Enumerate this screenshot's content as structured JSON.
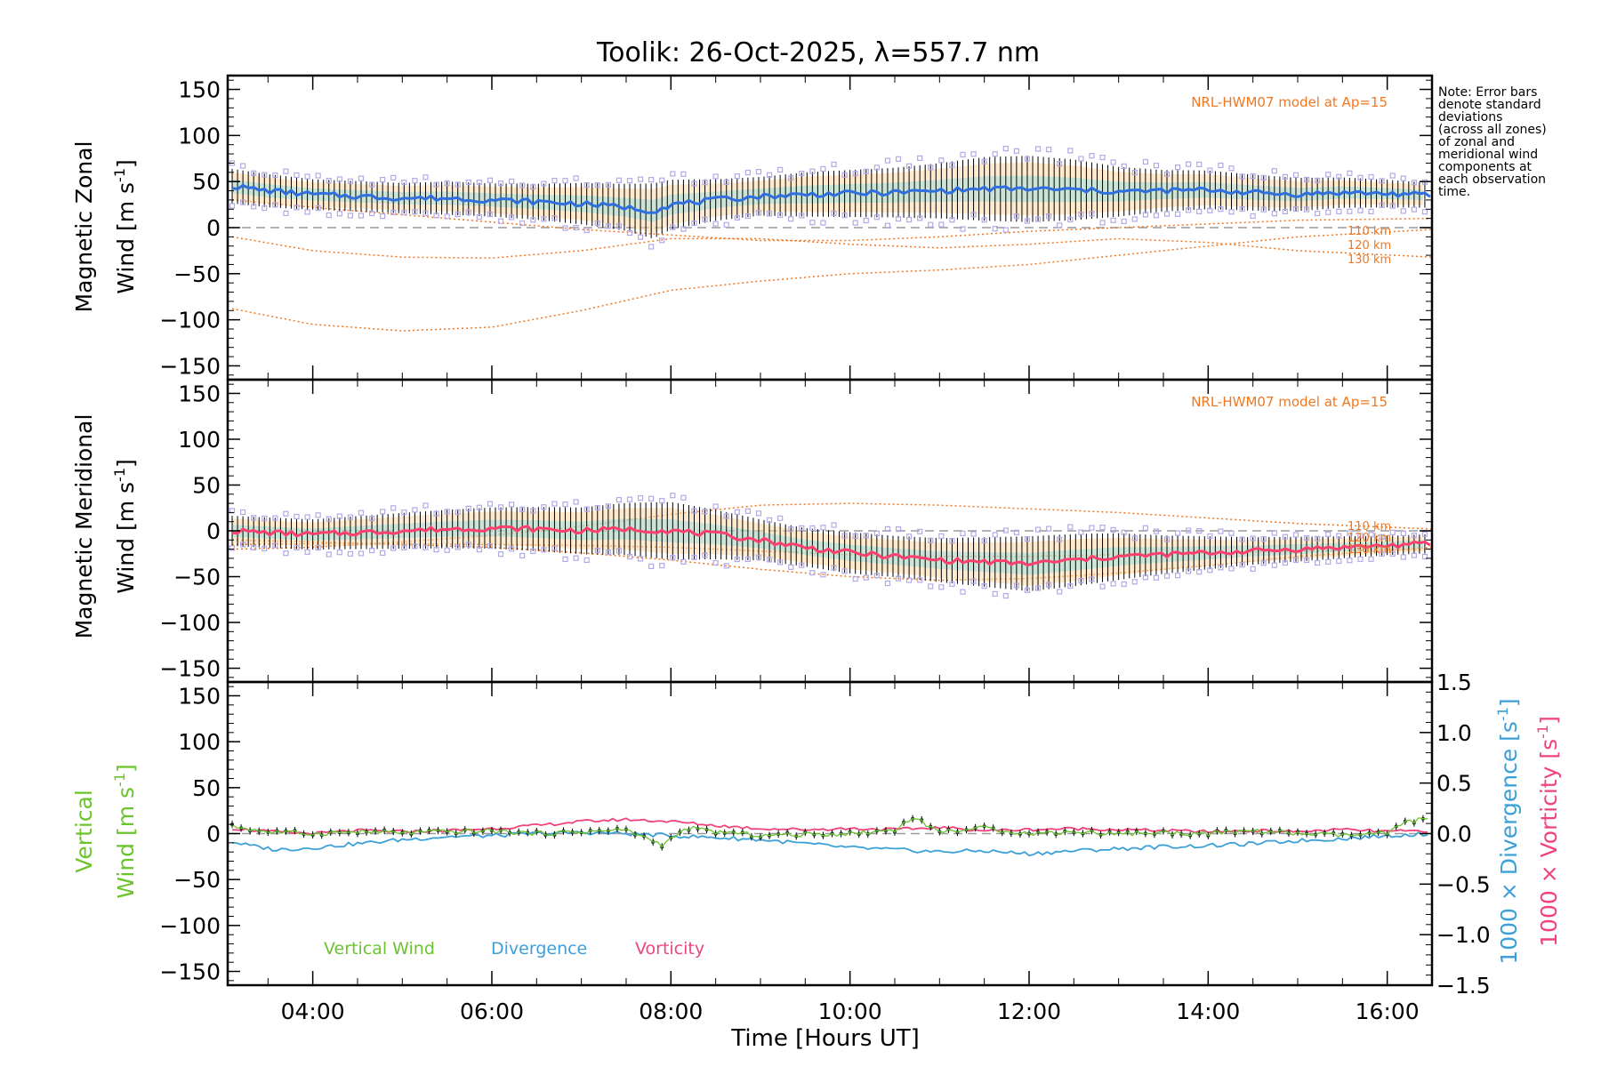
{
  "title": "Toolik: 26-Oct-2025, λ=557.7 nm",
  "note_lines": [
    "Note: Error bars",
    "denote standard",
    "deviations",
    "(across all zones)",
    "of zonal and",
    "meridional wind",
    "components at",
    "each observation",
    "time."
  ],
  "chart_data": [
    {
      "id": "zonal",
      "type": "line",
      "ylabel_top": "Magnetic Zonal",
      "ylabel_bottom_prefix": "Wind [m s",
      "ylabel_exp": "-1",
      "ylabel_bottom_suffix": "]",
      "xlim": [
        3.05,
        16.5
      ],
      "ylim": [
        -165,
        165
      ],
      "yticks": [
        -150,
        -100,
        -50,
        0,
        50,
        100,
        150
      ],
      "model_label": "NRL-HWM07 model at Ap=15",
      "model_altitude_labels": [
        "110 km",
        "120 km",
        "130 km"
      ],
      "mean_x": [
        3.1,
        3.5,
        4.0,
        4.5,
        5.0,
        5.5,
        6.0,
        6.5,
        7.0,
        7.5,
        7.8,
        8.0,
        8.5,
        9.0,
        9.5,
        10.0,
        10.5,
        11.0,
        11.5,
        12.0,
        12.5,
        13.0,
        13.5,
        14.0,
        14.5,
        15.0,
        15.5,
        16.0,
        16.5
      ],
      "mean_y": [
        45,
        40,
        36,
        34,
        32,
        32,
        30,
        28,
        26,
        22,
        18,
        25,
        30,
        34,
        36,
        37,
        38,
        40,
        42,
        42,
        41,
        39,
        40,
        41,
        38,
        36,
        38,
        37,
        35
      ],
      "spread": [
        25,
        24,
        22,
        22,
        22,
        24,
        24,
        26,
        30,
        34,
        40,
        36,
        30,
        28,
        32,
        34,
        36,
        40,
        46,
        48,
        44,
        36,
        30,
        28,
        26,
        24,
        22,
        20,
        18
      ],
      "model_x": [
        3.1,
        4.0,
        5.0,
        6.0,
        7.0,
        8.0,
        9.0,
        10.0,
        11.0,
        12.0,
        13.0,
        14.0,
        15.0,
        16.5
      ],
      "model_series": [
        {
          "name": "110 km",
          "values": [
            -10,
            -25,
            -32,
            -33,
            -25,
            -12,
            -12,
            -18,
            -22,
            -18,
            -12,
            -16,
            -25,
            -32
          ]
        },
        {
          "name": "120 km",
          "values": [
            -88,
            -105,
            -112,
            -108,
            -90,
            -68,
            -58,
            -50,
            -46,
            -40,
            -30,
            -20,
            -10,
            -2
          ]
        },
        {
          "name": "130 km",
          "values": [
            30,
            22,
            14,
            6,
            -2,
            -8,
            -14,
            -14,
            -10,
            -4,
            0,
            4,
            8,
            10
          ]
        }
      ]
    },
    {
      "id": "meridional",
      "type": "line",
      "ylabel_top": "Magnetic Meridional",
      "ylabel_bottom_prefix": "Wind [m s",
      "ylabel_exp": "-1",
      "ylabel_bottom_suffix": "]",
      "xlim": [
        3.05,
        16.5
      ],
      "ylim": [
        -165,
        165
      ],
      "yticks": [
        -150,
        -100,
        -50,
        0,
        50,
        100,
        150
      ],
      "model_label": "NRL-HWM07 model at Ap=15",
      "model_altitude_labels": [
        "110 km",
        "120 km",
        "130 km"
      ],
      "mean_x": [
        3.1,
        3.5,
        4.0,
        4.5,
        5.0,
        5.5,
        6.0,
        6.5,
        7.0,
        7.5,
        8.0,
        8.5,
        9.0,
        9.5,
        10.0,
        10.5,
        11.0,
        11.5,
        12.0,
        12.5,
        13.0,
        13.5,
        14.0,
        14.5,
        15.0,
        15.5,
        16.0,
        16.5
      ],
      "mean_y": [
        0,
        -2,
        -4,
        -2,
        0,
        2,
        3,
        2,
        0,
        2,
        0,
        -4,
        -10,
        -18,
        -24,
        -28,
        -32,
        -34,
        -36,
        -32,
        -28,
        -26,
        -24,
        -22,
        -20,
        -18,
        -16,
        -14
      ],
      "spread": [
        22,
        22,
        22,
        24,
        26,
        28,
        30,
        32,
        34,
        38,
        42,
        36,
        30,
        28,
        30,
        30,
        32,
        36,
        40,
        38,
        34,
        28,
        24,
        20,
        18,
        16,
        14,
        14
      ],
      "model_x": [
        3.1,
        4.0,
        5.0,
        6.0,
        7.0,
        8.0,
        9.0,
        10.0,
        11.0,
        12.0,
        13.0,
        14.0,
        15.0,
        16.5
      ],
      "model_series": [
        {
          "name": "110 km",
          "values": [
            -15,
            -14,
            -14,
            -15,
            -16,
            -18,
            -22,
            -26,
            -28,
            -28,
            -26,
            -24,
            -22,
            -20
          ]
        },
        {
          "name": "120 km",
          "values": [
            -20,
            -18,
            -12,
            -5,
            5,
            18,
            28,
            30,
            28,
            24,
            20,
            14,
            8,
            2
          ]
        },
        {
          "name": "130 km",
          "values": [
            -10,
            -12,
            -15,
            -18,
            -24,
            -32,
            -42,
            -50,
            -54,
            -52,
            -46,
            -38,
            -28,
            -18
          ]
        }
      ]
    },
    {
      "id": "vertical",
      "type": "line",
      "ylabel_top": "Vertical",
      "ylabel_bottom_prefix": "Wind [m s",
      "ylabel_exp": "-1",
      "ylabel_bottom_suffix": "]",
      "xlabel": "Time [Hours UT]",
      "xlim": [
        3.05,
        16.5
      ],
      "ylim": [
        -165,
        165
      ],
      "yticks": [
        -150,
        -100,
        -50,
        0,
        50,
        100,
        150
      ],
      "xticks": [
        4,
        6,
        8,
        10,
        12,
        14,
        16
      ],
      "xtick_labels": [
        "04:00",
        "06:00",
        "08:00",
        "10:00",
        "12:00",
        "14:00",
        "16:00"
      ],
      "y2lim": [
        -1.5,
        1.5
      ],
      "y2ticks": [
        -1.5,
        -1.0,
        -0.5,
        0.0,
        0.5,
        1.0,
        1.5
      ],
      "y2tick_labels": [
        "−1.5",
        "−1.0",
        "−0.5",
        "0.0",
        "0.5",
        "1.0",
        "1.5"
      ],
      "y2_label_div_prefix": "1000 × Divergence [s",
      "y2_label_vort_prefix": "1000 × Vorticity [s",
      "y2_label_exp": "-1",
      "y2_label_suffix": "]",
      "legend": [
        "Vertical Wind",
        "Divergence",
        "Vorticity"
      ],
      "vertical_x": [
        3.1,
        3.5,
        4.0,
        4.5,
        5.0,
        5.5,
        6.0,
        6.5,
        7.0,
        7.5,
        7.9,
        8.2,
        8.5,
        9.0,
        9.5,
        10.0,
        10.5,
        10.7,
        11.0,
        11.5,
        12.0,
        12.5,
        13.0,
        13.5,
        14.0,
        14.5,
        15.0,
        15.5,
        16.0,
        16.2,
        16.5
      ],
      "vertical_y": [
        8,
        2,
        0,
        2,
        1,
        2,
        3,
        0,
        2,
        4,
        -12,
        6,
        2,
        -2,
        -1,
        0,
        4,
        18,
        2,
        6,
        0,
        2,
        0,
        1,
        0,
        3,
        0,
        -2,
        0,
        12,
        18
      ],
      "divergence_x": [
        3.1,
        3.3,
        3.6,
        4.0,
        4.5,
        5.0,
        5.5,
        6.0,
        6.5,
        7.0,
        7.5,
        8.0,
        8.5,
        9.0,
        9.5,
        10.0,
        10.5,
        11.0,
        11.5,
        12.0,
        12.5,
        13.0,
        13.5,
        14.0,
        14.5,
        15.0,
        15.5,
        16.0,
        16.5
      ],
      "divergence_y": [
        -0.08,
        -0.12,
        -0.16,
        -0.14,
        -0.1,
        -0.06,
        -0.03,
        -0.02,
        0.0,
        0.01,
        0.0,
        -0.02,
        -0.04,
        -0.06,
        -0.1,
        -0.14,
        -0.16,
        -0.18,
        -0.17,
        -0.2,
        -0.17,
        -0.15,
        -0.13,
        -0.12,
        -0.1,
        -0.07,
        -0.05,
        -0.02,
        0.0
      ],
      "vorticity_x": [
        3.1,
        3.5,
        4.0,
        4.5,
        5.0,
        5.5,
        6.0,
        6.5,
        7.0,
        7.5,
        8.0,
        8.5,
        9.0,
        9.5,
        10.0,
        10.5,
        11.0,
        11.5,
        12.0,
        12.5,
        13.0,
        13.5,
        14.0,
        14.5,
        15.0,
        15.5,
        16.0,
        16.5
      ],
      "vorticity_y": [
        0.05,
        0.02,
        0.0,
        0.03,
        0.02,
        0.03,
        0.05,
        0.08,
        0.12,
        0.14,
        0.12,
        0.08,
        0.05,
        0.04,
        0.05,
        0.04,
        0.06,
        0.03,
        0.04,
        0.05,
        0.04,
        0.03,
        0.02,
        0.03,
        0.02,
        0.04,
        0.02,
        0.03
      ]
    }
  ],
  "colors": {
    "axis": "#000000",
    "zonal_mean": "#2f6fe0",
    "meridional_mean": "#ff3f6e",
    "errorbar": "#000000",
    "zone_scatter": "#b3a9e6",
    "zone_fill": "#ffd9a6",
    "cyan_fill": "#66d9e8",
    "model": "#f07820",
    "zero_line": "#9a9a9a",
    "vertical": "#6cc42d",
    "divergence": "#3ba0d8",
    "vorticity": "#f0437a"
  }
}
